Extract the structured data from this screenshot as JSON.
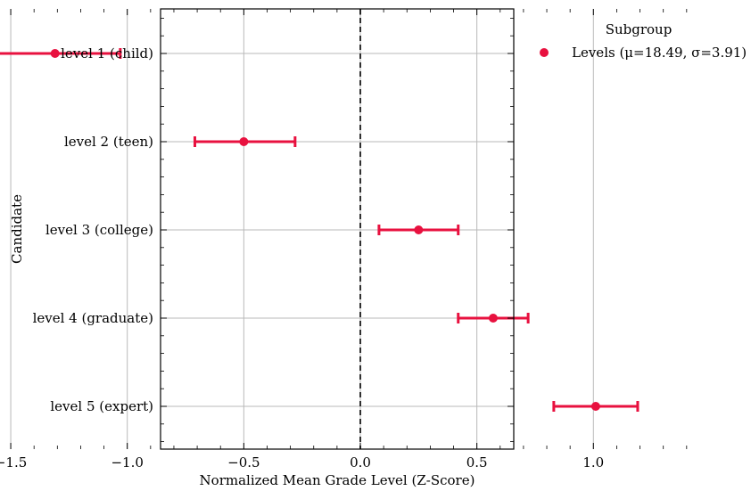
{
  "chart_data": {
    "type": "scatter",
    "xlabel": "Normalized Mean Grade Level (Z-Score)",
    "ylabel": "Candidate",
    "xlim": [
      -1.75,
      1.35
    ],
    "xticks": [
      -1.5,
      -1.0,
      -0.5,
      0.0,
      0.5,
      1.0
    ],
    "xtick_labels": [
      "−1.5",
      "−1.0",
      "−0.5",
      "0.0",
      "0.5",
      "1.0"
    ],
    "categories": [
      "level 1 (child)",
      "level 2 (teen)",
      "level 3 (college)",
      "level 4 (graduate)",
      "level 5 (expert)"
    ],
    "grid": true,
    "reference_line": {
      "x": 0.0,
      "style": "dashed"
    },
    "legend": {
      "title": "Subgroup",
      "placement": "outside-right-top"
    },
    "series": [
      {
        "name": "Levels (μ=18.49, σ=3.91)",
        "color": "#e8113f",
        "values": [
          -1.31,
          -0.5,
          0.25,
          0.57,
          1.01
        ],
        "lower": [
          -1.6,
          -0.71,
          0.08,
          0.42,
          0.83
        ],
        "upper": [
          -1.03,
          -0.28,
          0.42,
          0.72,
          1.19
        ]
      }
    ]
  }
}
